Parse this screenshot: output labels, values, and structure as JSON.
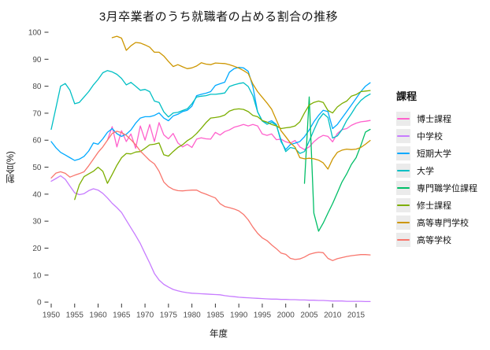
{
  "chart_data": {
    "type": "line",
    "title": "3月卒業者のうち就職者の占める割合の推移",
    "xlabel": "年度",
    "ylabel": "割合(%)",
    "legend_title": "課程",
    "legend_position": "right",
    "grid": false,
    "background": "#ffffff",
    "tick_color": "#333333",
    "tick_label_color": "#4d4d4d",
    "xlim": [
      1950,
      2018
    ],
    "ylim": [
      0,
      100
    ],
    "x_ticks": [
      1950,
      1955,
      1960,
      1965,
      1970,
      1975,
      1980,
      1985,
      1990,
      1995,
      2000,
      2005,
      2010,
      2015
    ],
    "y_ticks": [
      0,
      10,
      20,
      30,
      40,
      50,
      60,
      70,
      80,
      90,
      100
    ],
    "x_step": 1,
    "series": [
      {
        "id": "doctoral",
        "name": "博士課程",
        "color": "#FF61CC",
        "x_start": 1962,
        "values": [
          60,
          65,
          57.5,
          63.5,
          59.5,
          62.3,
          57,
          65.3,
          60,
          65.8,
          59.5,
          66.5,
          62,
          60.5,
          62.5,
          59,
          57.5,
          58.5,
          57.3,
          60.4,
          60.9,
          60.5,
          60.4,
          62.9,
          61.9,
          63.2,
          63.8,
          64.8,
          65.3,
          65.8,
          65.3,
          65.8,
          65.3,
          62.3,
          61.8,
          62.3,
          60.2,
          60.4,
          59.4,
          58.9,
          59.9,
          57.5,
          56.5,
          57.5,
          59.4,
          60.9,
          61.8,
          61.4,
          59.4,
          62.5,
          63.9,
          64.3,
          65.5,
          66.3,
          66.8,
          67,
          67.3
        ]
      },
      {
        "id": "junior-high-school",
        "name": "中学校",
        "color": "#C77CFF",
        "x_start": 1950,
        "values": [
          44.8,
          45.8,
          46.8,
          45.5,
          43,
          40.5,
          39.8,
          40.2,
          41.3,
          42,
          41.5,
          40.3,
          38.6,
          36.6,
          35,
          33.2,
          30.3,
          27.5,
          24.7,
          21.7,
          18,
          14.5,
          10.6,
          8.2,
          6.6,
          5.6,
          4.7,
          4.2,
          3.8,
          3.5,
          3.3,
          3.2,
          3.1,
          3,
          2.9,
          2.8,
          2.7,
          2.4,
          2.2,
          2,
          1.8,
          1.7,
          1.6,
          1.5,
          1.4,
          1.3,
          1.2,
          1.1,
          1.1,
          1,
          1,
          0.9,
          0.9,
          0.8,
          0.8,
          0.7,
          0.7,
          0.6,
          0.6,
          0.5,
          0.4,
          0.4,
          0.4,
          0.3,
          0.3,
          0.3,
          0.3,
          0.2,
          0.2
        ]
      },
      {
        "id": "junior-college",
        "name": "短期大学",
        "color": "#00A9FF",
        "x_start": 1950,
        "values": [
          59.5,
          57.2,
          55.5,
          54.5,
          53.5,
          52.5,
          53,
          54,
          56,
          59,
          58.5,
          60.5,
          62.9,
          64.3,
          62.4,
          61.4,
          62.2,
          63.8,
          66.3,
          68.2,
          68.7,
          68.7,
          69.2,
          70.1,
          68.2,
          67.2,
          69,
          69.6,
          70.6,
          71.1,
          72.6,
          76.5,
          77,
          77.4,
          78,
          80.3,
          80.9,
          81.5,
          85.2,
          86.5,
          87,
          86.8,
          85.5,
          79.8,
          70.5,
          67.2,
          66.5,
          67.2,
          65.8,
          59.5,
          56.5,
          58.4,
          58.9,
          59.5,
          61.3,
          63.8,
          66.8,
          69.2,
          71.1,
          70.6,
          64.3,
          65.8,
          68.2,
          70.6,
          73,
          75.5,
          78,
          80,
          81.3
        ]
      },
      {
        "id": "university",
        "name": "大学",
        "color": "#00BFC4",
        "x_start": 1950,
        "values": [
          64,
          72,
          80,
          81,
          78.5,
          73.5,
          74,
          76,
          78,
          80.5,
          82.5,
          85,
          85.8,
          85.3,
          84.4,
          82.9,
          80.5,
          81.4,
          80,
          78.5,
          78.8,
          78,
          74.5,
          74,
          70.5,
          68.6,
          70.1,
          70.3,
          71,
          71.6,
          73.5,
          76,
          76.3,
          76.5,
          77,
          77,
          77.2,
          77.5,
          79.9,
          80.5,
          81,
          81.3,
          79.9,
          76.5,
          70.5,
          67.1,
          65.9,
          66.6,
          65.6,
          60.1,
          55.8,
          57.3,
          56.9,
          55.1,
          55.8,
          59.7,
          63.7,
          67.6,
          69.9,
          68.4,
          60.8,
          61.6,
          63.9,
          67.3,
          69.8,
          72.6,
          74.7,
          76.1,
          77.1
        ]
      },
      {
        "id": "professional-degree",
        "name": "専門職学位課程",
        "color": "#00BE67",
        "x_start": 2004,
        "values": [
          44,
          76,
          33,
          26.3,
          29.3,
          33,
          36.5,
          40.5,
          44.5,
          47.5,
          51,
          53.5,
          58,
          63,
          64
        ]
      },
      {
        "id": "masters",
        "name": "修士課程",
        "color": "#7CAE00",
        "x_start": 1955,
        "values": [
          38,
          43.5,
          46.5,
          47.5,
          48.5,
          50,
          48.5,
          44,
          47.3,
          50.7,
          53.5,
          55.1,
          54.9,
          55.6,
          55.8,
          57,
          58.3,
          58.5,
          59,
          54.6,
          54.1,
          55.8,
          57.3,
          58.3,
          59.8,
          60.9,
          62.5,
          64.4,
          66.5,
          68.2,
          68.4,
          68.7,
          69.3,
          70.8,
          71.4,
          71.6,
          71.4,
          70.6,
          69.2,
          68.7,
          67.3,
          66.7,
          65.8,
          65.3,
          64.3,
          64.6,
          64.8,
          65.3,
          66.8,
          70.1,
          73,
          74,
          74.5,
          74,
          71,
          70.1,
          72.3,
          73.6,
          74.5,
          76.3,
          76.9,
          78,
          78.2,
          78.4
        ]
      },
      {
        "id": "technical-college",
        "name": "高等専門学校",
        "color": "#CD9600",
        "x_start": 1963,
        "values": [
          98,
          98.5,
          97.8,
          93.3,
          95,
          96.2,
          96,
          95.3,
          94.5,
          92.6,
          92.6,
          91.2,
          89.2,
          87.3,
          88,
          87.2,
          86.5,
          86.8,
          87.5,
          88.7,
          88.2,
          88,
          88.6,
          88.5,
          88.4,
          88,
          87.4,
          86.7,
          85.8,
          84.7,
          80.8,
          78,
          75.9,
          73.8,
          71.5,
          67.5,
          63.5,
          61.3,
          59,
          57.4,
          53.5,
          53.1,
          53.3,
          53.1,
          52.6,
          51.6,
          49.3,
          53,
          55.5,
          56.3,
          56.7,
          56.5,
          56.7,
          57.3,
          58.5,
          59.9
        ]
      },
      {
        "id": "high-school",
        "name": "高等学校",
        "color": "#F8766D",
        "x_start": 1950,
        "values": [
          46,
          47.8,
          48.3,
          47.7,
          46.3,
          47,
          47.6,
          48.3,
          50.5,
          53,
          55.5,
          57.5,
          60,
          62.5,
          63.3,
          62.8,
          61.8,
          60.2,
          58.3,
          56,
          54.2,
          52.5,
          51.2,
          48.5,
          44.5,
          42.8,
          41.8,
          41.3,
          41.2,
          41.4,
          41.5,
          41.5,
          40.6,
          40,
          39.3,
          38.6,
          36.5,
          35.4,
          35,
          34.5,
          33.8,
          32.5,
          30.5,
          27.8,
          25.5,
          23.8,
          22.8,
          21.2,
          19.8,
          18.2,
          17.7,
          16.2,
          15.8,
          16,
          16.7,
          17.7,
          18.2,
          18.5,
          18.3,
          16.2,
          15.4,
          16.1,
          16.5,
          16.9,
          17.2,
          17.4,
          17.6,
          17.6,
          17.5
        ]
      }
    ]
  }
}
